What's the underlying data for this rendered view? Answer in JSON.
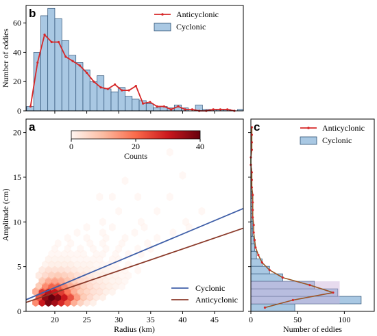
{
  "colors": {
    "anticyclonic": "#d62728",
    "cyclonic_fill": "#a9c8e3",
    "cyclonic_edge": "#2b4f73",
    "fit_cyclonic": "#3f5fa8",
    "fit_anticyclonic": "#8b3a2a",
    "c_green": "#6e7a2a",
    "c_purple": "#c9b0d9",
    "cmap": [
      "#fff5f0",
      "#fcbba1",
      "#fb6a4a",
      "#cb181d",
      "#67000d"
    ]
  },
  "panel_labels": {
    "a": "a",
    "b": "b",
    "c": "c"
  },
  "chart_data": [
    {
      "id": "b",
      "type": "bar",
      "ylabel": "Number of eddies",
      "xlim": [
        15.5,
        49.5
      ],
      "ylim": [
        0,
        72
      ],
      "yticks": [
        "0",
        "20",
        "40",
        "60"
      ],
      "legend": {
        "position": "top-right",
        "entries": [
          "Anticyclonic",
          "Cyclonic"
        ]
      },
      "series": [
        {
          "name": "Cyclonic",
          "bin_edges": [
            15.6,
            16.7,
            17.8,
            18.9,
            20.0,
            21.1,
            22.2,
            23.3,
            24.4,
            25.5,
            26.6,
            27.7,
            28.8,
            29.9,
            31.0,
            32.1,
            33.2,
            34.3,
            35.4,
            36.5,
            37.6,
            38.7,
            39.8,
            40.9,
            42.0,
            43.1,
            44.2,
            45.3,
            46.4,
            47.5,
            48.6,
            49.7
          ],
          "counts": [
            3,
            40,
            65,
            70,
            63,
            48,
            38,
            33,
            28,
            20,
            24,
            15,
            13,
            16,
            10,
            8,
            7,
            5,
            2,
            3,
            2,
            4,
            2,
            0,
            4,
            1,
            1,
            1,
            1,
            0,
            1
          ]
        },
        {
          "name": "Anticyclonic",
          "x": [
            16.2,
            17.3,
            18.4,
            19.5,
            20.6,
            21.7,
            22.8,
            23.9,
            25.0,
            26.1,
            27.2,
            28.3,
            29.4,
            30.5,
            31.6,
            32.7,
            33.8,
            34.9,
            36.0,
            37.1,
            38.2,
            39.3,
            40.4,
            41.5,
            42.6,
            43.7,
            44.8,
            45.9,
            47.0,
            48.1
          ],
          "y": [
            3,
            33,
            52,
            47,
            47,
            37,
            34,
            31,
            26,
            20,
            16,
            15,
            18,
            14,
            14,
            17,
            5,
            6,
            3,
            3,
            1,
            3,
            1,
            1,
            0,
            0,
            1,
            1,
            1,
            0
          ]
        }
      ]
    },
    {
      "id": "a",
      "type": "heatmap",
      "xlabel": "Radius (km)",
      "ylabel": "Amplitude (cm)",
      "xlim": [
        15.5,
        49.5
      ],
      "ylim": [
        0,
        21.5
      ],
      "xticks": [
        "20",
        "25",
        "30",
        "35",
        "40",
        "45"
      ],
      "yticks": [
        "0",
        "5",
        "10",
        "15",
        "20"
      ],
      "colorbar": {
        "label": "Counts",
        "ticks": [
          "0",
          "20",
          "40"
        ],
        "range": [
          0,
          40
        ]
      },
      "bins": [
        [
          17,
          1.0,
          18
        ],
        [
          18,
          1.0,
          30
        ],
        [
          19,
          1.0,
          38
        ],
        [
          20,
          1.0,
          34
        ],
        [
          21,
          1.0,
          28
        ],
        [
          22,
          1.0,
          22
        ],
        [
          23,
          1.0,
          14
        ],
        [
          24,
          1.0,
          9
        ],
        [
          25,
          1.0,
          5
        ],
        [
          26,
          1.0,
          3
        ],
        [
          17.5,
          1.6,
          24
        ],
        [
          18.5,
          1.6,
          36
        ],
        [
          19.5,
          1.6,
          40
        ],
        [
          20.5,
          1.6,
          37
        ],
        [
          21.5,
          1.6,
          30
        ],
        [
          22.5,
          1.6,
          24
        ],
        [
          23.5,
          1.6,
          16
        ],
        [
          24.5,
          1.6,
          10
        ],
        [
          25.5,
          1.6,
          7
        ],
        [
          26.5,
          1.6,
          4
        ],
        [
          27.5,
          1.6,
          3
        ],
        [
          17,
          2.2,
          14
        ],
        [
          18,
          2.2,
          26
        ],
        [
          19,
          2.2,
          32
        ],
        [
          20,
          2.2,
          30
        ],
        [
          21,
          2.2,
          26
        ],
        [
          22,
          2.2,
          20
        ],
        [
          23,
          2.2,
          14
        ],
        [
          24,
          2.2,
          10
        ],
        [
          25,
          2.2,
          8
        ],
        [
          26,
          2.2,
          6
        ],
        [
          27,
          2.2,
          5
        ],
        [
          28,
          2.2,
          3
        ],
        [
          29,
          2.2,
          2
        ],
        [
          17.5,
          2.8,
          10
        ],
        [
          18.5,
          2.8,
          18
        ],
        [
          19.5,
          2.8,
          22
        ],
        [
          20.5,
          2.8,
          22
        ],
        [
          21.5,
          2.8,
          18
        ],
        [
          22.5,
          2.8,
          14
        ],
        [
          23.5,
          2.8,
          12
        ],
        [
          24.5,
          2.8,
          9
        ],
        [
          25.5,
          2.8,
          7
        ],
        [
          26.5,
          2.8,
          5
        ],
        [
          27.5,
          2.8,
          4
        ],
        [
          28.5,
          2.8,
          3
        ],
        [
          29.5,
          2.8,
          2
        ],
        [
          30.5,
          2.8,
          1
        ],
        [
          18,
          3.4,
          10
        ],
        [
          19,
          3.4,
          14
        ],
        [
          20,
          3.4,
          15
        ],
        [
          21,
          3.4,
          14
        ],
        [
          22,
          3.4,
          11
        ],
        [
          23,
          3.4,
          9
        ],
        [
          24,
          3.4,
          7
        ],
        [
          25,
          3.4,
          6
        ],
        [
          26,
          3.4,
          5
        ],
        [
          27,
          3.4,
          4
        ],
        [
          28,
          3.4,
          3
        ],
        [
          29,
          3.4,
          2
        ],
        [
          30,
          3.4,
          2
        ],
        [
          31,
          3.4,
          1
        ],
        [
          17.5,
          4.0,
          4
        ],
        [
          18.5,
          4.0,
          7
        ],
        [
          19.5,
          4.0,
          9
        ],
        [
          20.5,
          4.0,
          10
        ],
        [
          21.5,
          4.0,
          9
        ],
        [
          22.5,
          4.0,
          8
        ],
        [
          23.5,
          4.0,
          6
        ],
        [
          24.5,
          4.0,
          5
        ],
        [
          25.5,
          4.0,
          4
        ],
        [
          26.5,
          4.0,
          3
        ],
        [
          27.5,
          4.0,
          3
        ],
        [
          28.5,
          4.0,
          2
        ],
        [
          29.5,
          4.0,
          2
        ],
        [
          30.5,
          4.0,
          1
        ],
        [
          31.5,
          4.0,
          1
        ],
        [
          18,
          4.6,
          4
        ],
        [
          19,
          4.6,
          6
        ],
        [
          20,
          4.6,
          6
        ],
        [
          21,
          4.6,
          6
        ],
        [
          22,
          4.6,
          5
        ],
        [
          23,
          4.6,
          4
        ],
        [
          24,
          4.6,
          3
        ],
        [
          25,
          4.6,
          3
        ],
        [
          26,
          4.6,
          2
        ],
        [
          27,
          4.6,
          2
        ],
        [
          28,
          4.6,
          2
        ],
        [
          29,
          4.6,
          1
        ],
        [
          30,
          4.6,
          1
        ],
        [
          31,
          4.6,
          1
        ],
        [
          33,
          4.6,
          1
        ],
        [
          18.5,
          5.2,
          2
        ],
        [
          19.5,
          5.2,
          3
        ],
        [
          20.5,
          5.2,
          3
        ],
        [
          21.5,
          5.2,
          3
        ],
        [
          22.5,
          5.2,
          3
        ],
        [
          23.5,
          5.2,
          2
        ],
        [
          24.5,
          5.2,
          2
        ],
        [
          25.5,
          5.2,
          2
        ],
        [
          26.5,
          5.2,
          1
        ],
        [
          27.5,
          5.2,
          1
        ],
        [
          28.5,
          5.2,
          1
        ],
        [
          29.5,
          5.2,
          1
        ],
        [
          31.5,
          5.2,
          1
        ],
        [
          19,
          5.8,
          2
        ],
        [
          20,
          5.8,
          2
        ],
        [
          21,
          5.8,
          2
        ],
        [
          22,
          5.8,
          2
        ],
        [
          23,
          5.8,
          1
        ],
        [
          24,
          5.8,
          1
        ],
        [
          25,
          5.8,
          1
        ],
        [
          26,
          5.8,
          1
        ],
        [
          27,
          5.8,
          1
        ],
        [
          29,
          5.8,
          1
        ],
        [
          30,
          5.8,
          1
        ],
        [
          19.5,
          6.4,
          1
        ],
        [
          20.5,
          6.4,
          1
        ],
        [
          21.5,
          6.4,
          1
        ],
        [
          22.5,
          6.4,
          1
        ],
        [
          23.5,
          6.4,
          1
        ],
        [
          24.5,
          6.4,
          1
        ],
        [
          26.5,
          6.4,
          1
        ],
        [
          27.5,
          6.4,
          1
        ],
        [
          29.5,
          6.4,
          1
        ],
        [
          31.5,
          6.4,
          1
        ],
        [
          33.5,
          6.4,
          1
        ],
        [
          20,
          7.0,
          1
        ],
        [
          22,
          7.0,
          1
        ],
        [
          24,
          7.0,
          1
        ],
        [
          26,
          7.0,
          1
        ],
        [
          28,
          7.0,
          1
        ],
        [
          30,
          7.0,
          1
        ],
        [
          33,
          7.0,
          1
        ],
        [
          35,
          7.0,
          1
        ],
        [
          20.5,
          7.6,
          1
        ],
        [
          22.5,
          7.6,
          1
        ],
        [
          25.5,
          7.6,
          1
        ],
        [
          27.5,
          7.6,
          1
        ],
        [
          30.5,
          7.6,
          1
        ],
        [
          34.5,
          7.6,
          1
        ],
        [
          22,
          8.2,
          1
        ],
        [
          25,
          8.2,
          1
        ],
        [
          28,
          8.2,
          1
        ],
        [
          31,
          8.2,
          1
        ],
        [
          36,
          8.2,
          1
        ],
        [
          23.5,
          8.8,
          1
        ],
        [
          27.5,
          8.8,
          1
        ],
        [
          32.5,
          8.8,
          1
        ],
        [
          38.5,
          8.8,
          1
        ],
        [
          25,
          9.4,
          1
        ],
        [
          29,
          9.4,
          1
        ],
        [
          34,
          9.4,
          1
        ],
        [
          41,
          9.4,
          1
        ],
        [
          27.5,
          10.0,
          1
        ],
        [
          33.5,
          10.0,
          1
        ],
        [
          40.5,
          10.0,
          1
        ],
        [
          30,
          11.2,
          1
        ],
        [
          36,
          11.2,
          1
        ],
        [
          43,
          11.2,
          1
        ],
        [
          27,
          12.8,
          1
        ],
        [
          29,
          12.8,
          1
        ],
        [
          33,
          12.8,
          1
        ],
        [
          38,
          12.8,
          1
        ],
        [
          31,
          14.6,
          1
        ],
        [
          40,
          15.2,
          1
        ],
        [
          38,
          17.8,
          1
        ]
      ],
      "fits": [
        {
          "name": "Cyclonic",
          "x": [
            15.5,
            49.5
          ],
          "y": [
            1.3,
            11.5
          ]
        },
        {
          "name": "Anticyclonic",
          "x": [
            15.5,
            49.5
          ],
          "y": [
            1.0,
            9.3
          ]
        }
      ],
      "legend": {
        "position": "bottom-right",
        "entries": [
          "Cyclonic",
          "Anticyclonic"
        ]
      }
    },
    {
      "id": "c",
      "type": "bar",
      "orientation": "horizontal",
      "xlabel": "Number of eddies",
      "xlim": [
        0,
        132
      ],
      "ylim": [
        0,
        21.5
      ],
      "xticks": [
        "0",
        "50",
        "100"
      ],
      "legend": {
        "position": "top-right",
        "entries": [
          "Anticyclonic",
          "Cyclonic"
        ]
      },
      "series": [
        {
          "name": "Cyclonic",
          "bin_edges": [
            0,
            0.84,
            1.68,
            2.52,
            3.36,
            4.2,
            5.04,
            5.88,
            6.72,
            7.56,
            8.4,
            9.24,
            10.08,
            10.92,
            11.76,
            12.6,
            13.44,
            14.28,
            15.12,
            15.96,
            16.8,
            17.64,
            18.48,
            19.32,
            20.16
          ],
          "counts": [
            47,
            118,
            93,
            68,
            34,
            20,
            12,
            6,
            4,
            3,
            2,
            2,
            2,
            2,
            2,
            1,
            1,
            1,
            1,
            0,
            0,
            0,
            1,
            1
          ]
        },
        {
          "name": "Anticyclonic",
          "y": [
            0.42,
            1.26,
            2.1,
            2.94,
            3.78,
            4.62,
            5.46,
            6.3,
            7.14,
            7.98,
            8.82,
            9.66,
            10.5,
            11.34,
            12.18,
            13.02,
            13.86,
            14.7,
            15.54,
            16.38,
            17.22,
            18.06,
            18.9,
            19.74,
            20.58
          ],
          "x": [
            15,
            45,
            88,
            63,
            34,
            20,
            12,
            8,
            5,
            4,
            3,
            3,
            2,
            2,
            2,
            2,
            1,
            1,
            1,
            0,
            0,
            1,
            1,
            1,
            1
          ]
        }
      ]
    }
  ]
}
